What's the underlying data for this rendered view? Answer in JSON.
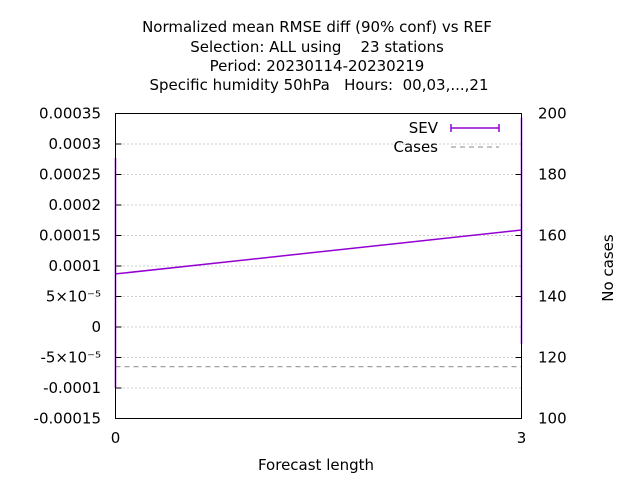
{
  "title_lines": [
    "Normalized mean RMSE diff (90% conf) vs REF",
    "Selection: ALL using    23 stations",
    "Period: 20230114-20230219",
    "Specific humidity 50hPa   Hours:  00,03,...,21"
  ],
  "chart_data": {
    "type": "line",
    "xlabel": "Forecast length",
    "y2label": "No cases",
    "x_ticks": [
      "0",
      "3"
    ],
    "xlim": [
      0,
      3
    ],
    "ylim": [
      -0.00015,
      0.00035
    ],
    "y_ticks": [
      "0.00035",
      "0.0003",
      "0.00025",
      "0.0002",
      "0.00015",
      "0.0001",
      "5×10⁻⁵",
      "0",
      "-5×10⁻⁵",
      "-0.0001",
      "-0.00015"
    ],
    "y_tick_values": [
      0.00035,
      0.0003,
      0.00025,
      0.0002,
      0.00015,
      0.0001,
      5e-05,
      0,
      -5e-05,
      -0.0001,
      -0.00015
    ],
    "y2lim": [
      100,
      200
    ],
    "y2_ticks": [
      "200",
      "180",
      "160",
      "140",
      "120",
      "100"
    ],
    "y2_tick_values": [
      200,
      180,
      160,
      140,
      120,
      100
    ],
    "grid": true,
    "legend_position": "top-right",
    "series": [
      {
        "name": "SEV",
        "color": "#9400d3",
        "axis": "y",
        "x": [
          0,
          3
        ],
        "y": [
          8.7e-05,
          0.000159
        ],
        "err_low": [
          -0.0001,
          -2.8e-05
        ],
        "err_high": [
          0.000277,
          0.000343
        ]
      },
      {
        "name": "Cases",
        "color": "#a0a0a0",
        "axis": "y2",
        "style": "dashed",
        "x": [
          0,
          3
        ],
        "y": [
          117,
          117
        ]
      }
    ]
  }
}
